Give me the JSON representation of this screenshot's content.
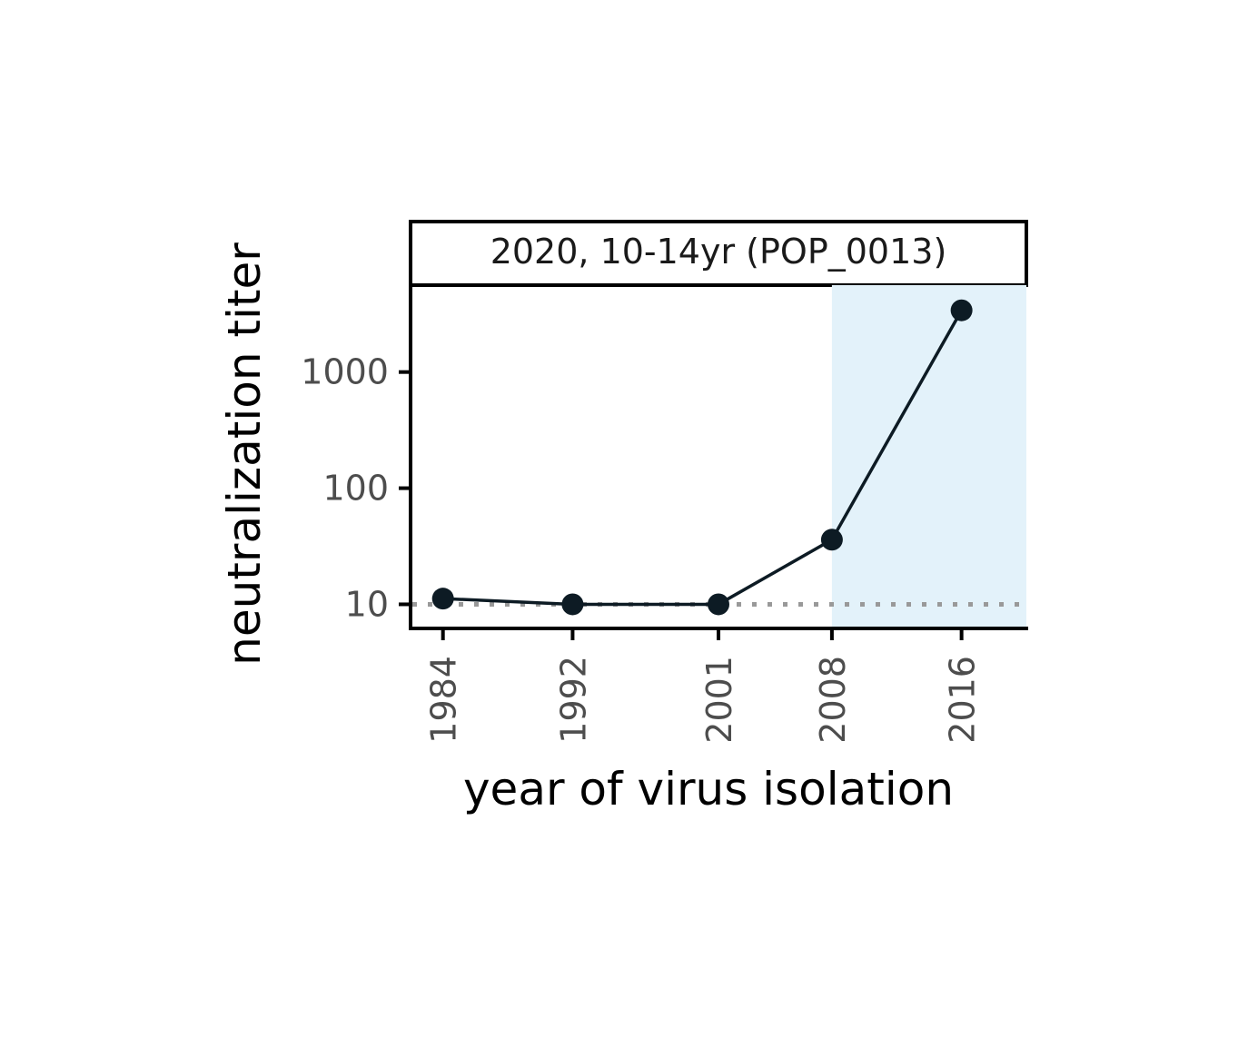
{
  "chart_data": {
    "type": "line",
    "facet_title": "2020, 10-14yr (POP_0013)",
    "xlabel": "year of virus isolation",
    "ylabel": "neutralization titer",
    "y_scale": "log",
    "yticks": [
      10,
      100,
      1000
    ],
    "ytick_labels": [
      "10",
      "100",
      "1000"
    ],
    "xticks": [
      1984,
      1992,
      2001,
      2008,
      2016
    ],
    "xtick_labels": [
      "1984",
      "1992",
      "2001",
      "2008",
      "2016"
    ],
    "xlim": [
      1982,
      2020
    ],
    "ylim": [
      6.2,
      5600
    ],
    "series": [
      {
        "x": [
          1984,
          1992,
          2001,
          2008,
          2016
        ],
        "y": [
          11.2,
          10,
          10,
          36,
          3400
        ]
      }
    ],
    "reference_line": {
      "y": 10,
      "style": "dotted",
      "color": "#999999"
    },
    "highlight_region": {
      "x_from": 2008,
      "x_to": 2020,
      "color": "#e3f2fa"
    },
    "line_color": "#0d1b24",
    "grid": false
  }
}
